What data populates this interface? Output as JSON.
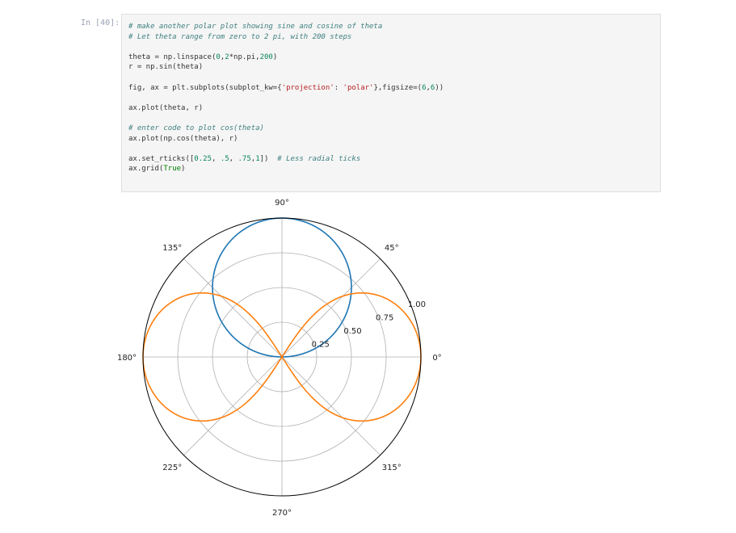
{
  "notebook": {
    "prompt": "In [40]:",
    "code_lines": [
      [
        {
          "t": "# make another polar plot showing sine and cosine of theta",
          "c": "c"
        }
      ],
      [
        {
          "t": "# Let theta range from zero to 2 pi, with 200 steps",
          "c": "c"
        }
      ],
      [],
      [
        {
          "t": "theta = np.linspace(",
          "c": ""
        },
        {
          "t": "0",
          "c": "n"
        },
        {
          "t": ",",
          "c": ""
        },
        {
          "t": "2",
          "c": "n"
        },
        {
          "t": "*np.pi,",
          "c": ""
        },
        {
          "t": "200",
          "c": "n"
        },
        {
          "t": ")",
          "c": ""
        }
      ],
      [
        {
          "t": "r = np.sin(theta)",
          "c": ""
        }
      ],
      [],
      [
        {
          "t": "fig, ax = plt.subplots(subplot_kw={",
          "c": ""
        },
        {
          "t": "'projection'",
          "c": "s"
        },
        {
          "t": ": ",
          "c": ""
        },
        {
          "t": "'polar'",
          "c": "s"
        },
        {
          "t": "},figsize=(",
          "c": ""
        },
        {
          "t": "6",
          "c": "n"
        },
        {
          "t": ",",
          "c": ""
        },
        {
          "t": "6",
          "c": "n"
        },
        {
          "t": "))",
          "c": ""
        }
      ],
      [],
      [
        {
          "t": "ax.plot(theta, r)",
          "c": ""
        }
      ],
      [],
      [
        {
          "t": "# enter code to plot cos(theta)",
          "c": "c"
        }
      ],
      [
        {
          "t": "ax.plot(np.cos(theta), r)",
          "c": ""
        }
      ],
      [],
      [
        {
          "t": "ax.set_rticks([",
          "c": ""
        },
        {
          "t": "0.25",
          "c": "n"
        },
        {
          "t": ", ",
          "c": ""
        },
        {
          "t": ".5",
          "c": "n"
        },
        {
          "t": ", ",
          "c": ""
        },
        {
          "t": ".75",
          "c": "n"
        },
        {
          "t": ",",
          "c": ""
        },
        {
          "t": "1",
          "c": "n"
        },
        {
          "t": "])  ",
          "c": ""
        },
        {
          "t": "# Less radial ticks",
          "c": "c"
        }
      ],
      [
        {
          "t": "ax.grid(",
          "c": ""
        },
        {
          "t": "True",
          "c": "k"
        },
        {
          "t": ")",
          "c": ""
        }
      ]
    ]
  },
  "chart_data": {
    "type": "line",
    "projection": "polar",
    "angle_tick_labels": [
      "0°",
      "45°",
      "90°",
      "135°",
      "180°",
      "225°",
      "270°",
      "315°"
    ],
    "radial_ticks": [
      0.25,
      0.5,
      0.75,
      1.0
    ],
    "radial_tick_labels": [
      "0.25",
      "0.50",
      "0.75",
      "1.00"
    ],
    "rlim": [
      0,
      1
    ],
    "grid": true,
    "series": [
      {
        "theta": "linspace(0, 2π, 200)",
        "r": "sin(theta)",
        "color": "#1f77b4"
      },
      {
        "theta": "cos(linspace(0, 2π, 200))",
        "r": "sin(linspace(0, 2π, 200))",
        "color": "#ff7f0e"
      }
    ],
    "colors": {
      "series_1": "#1f77b4",
      "series_2": "#ff7f0e",
      "grid": "#b0b0b0",
      "spine": "#000000"
    }
  }
}
